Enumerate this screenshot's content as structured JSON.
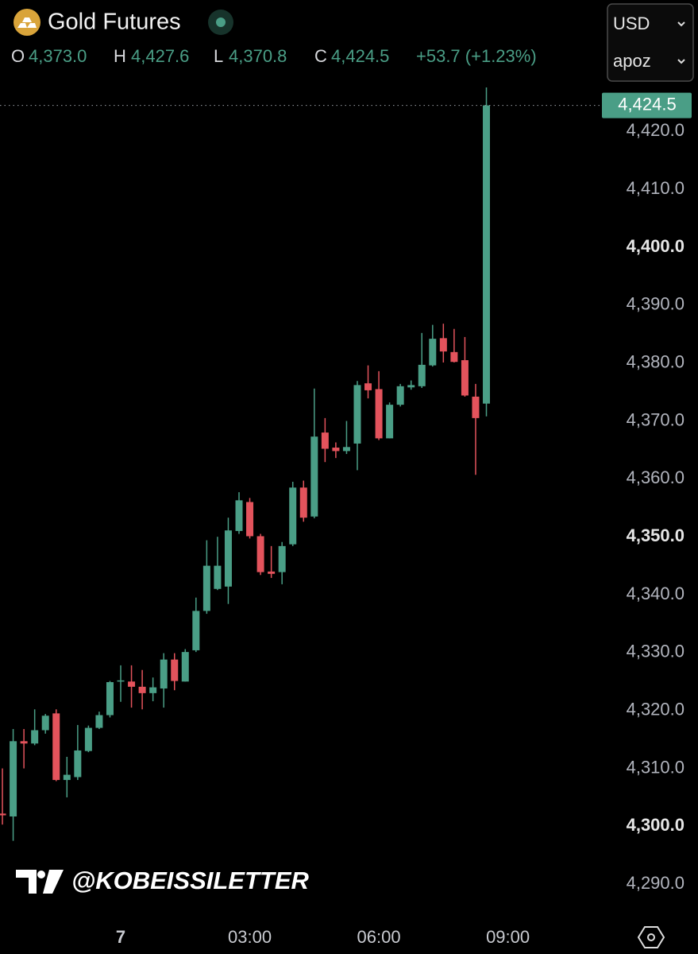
{
  "header": {
    "title": "Gold Futures",
    "ohlc": [
      {
        "key": "O",
        "value": "4,373.0"
      },
      {
        "key": "H",
        "value": "4,427.6"
      },
      {
        "key": "L",
        "value": "4,370.8"
      },
      {
        "key": "C",
        "value": "4,424.5"
      }
    ],
    "change": "+53.7 (+1.23%)"
  },
  "controls": {
    "currency": "USD",
    "unit": "apoz"
  },
  "watermark": "@KOBEISSILETTER",
  "chart_data": {
    "type": "candlestick",
    "x": [
      -2.75,
      -2.5,
      -2.25,
      -2,
      -1.75,
      -1.5,
      -1.25,
      -1,
      -0.75,
      -0.5,
      -0.25,
      0,
      0.25,
      0.5,
      0.75,
      1,
      1.25,
      1.5,
      1.75,
      2,
      2.25,
      2.5,
      2.75,
      3,
      3.25,
      3.5,
      3.75,
      4,
      4.25,
      4.5,
      4.75,
      5,
      5.25,
      5.5,
      5.75,
      6,
      6.25,
      6.5,
      6.75,
      7,
      7.25,
      7.5,
      7.75,
      8,
      8.25,
      8.5
    ],
    "open": [
      4302.2,
      4301.7,
      4314.7,
      4314.3,
      4316.6,
      4319.5,
      4308,
      4308.5,
      4313,
      4317,
      4319.2,
      4325,
      4325,
      4324.1,
      4323,
      4323.8,
      4328.8,
      4325,
      4330.4,
      4337.2,
      4341,
      4341.4,
      4351,
      4356,
      4350.1,
      4344,
      4343.9,
      4348.7,
      4358.5,
      4353.5,
      4368,
      4365.4,
      4364.8,
      4366.1,
      4376.5,
      4375.5,
      4367,
      4372.8,
      4375.8,
      4376,
      4379.6,
      4384.3,
      4381.9,
      4380.5,
      4374.2,
      4373
    ],
    "high": [
      4310,
      4316.8,
      4316.8,
      4320.2,
      4319.4,
      4320.2,
      4312,
      4317.5,
      4317.4,
      4319.8,
      4325.1,
      4327.8,
      4327.8,
      4327,
      4325.7,
      4329.9,
      4329.9,
      4330.6,
      4339.5,
      4349.4,
      4350,
      4353.3,
      4357.7,
      4356.7,
      4350.5,
      4348.4,
      4349.1,
      4359.5,
      4359.7,
      4375.6,
      4370.5,
      4366.3,
      4370,
      4376.9,
      4379.6,
      4378.6,
      4373.2,
      4376.4,
      4377,
      4385.2,
      4386.6,
      4386.8,
      4385.9,
      4384.5,
      4376.4,
      4427.6
    ],
    "low": [
      4300.3,
      4297.5,
      4310,
      4314,
      4316,
      4307.8,
      4305,
      4308,
      4312.8,
      4316.8,
      4318.8,
      4321.5,
      4320.5,
      4320.2,
      4321.6,
      4320.5,
      4323.5,
      4325,
      4330.1,
      4336.7,
      4340.8,
      4338.4,
      4350.5,
      4349.7,
      4343.4,
      4342.9,
      4341.8,
      4348.4,
      4352.6,
      4353.2,
      4362.9,
      4363.6,
      4364.3,
      4361.5,
      4373.9,
      4366.7,
      4367,
      4372.5,
      4375.4,
      4375.7,
      4379.4,
      4380.1,
      4380.1,
      4374.2,
      4360.7,
      4370.8
    ],
    "close": [
      4301.9,
      4314.7,
      4314.3,
      4316.6,
      4319.1,
      4308,
      4308.9,
      4313.1,
      4317,
      4319.2,
      4324.9,
      4325.2,
      4324.1,
      4323,
      4324,
      4328.8,
      4325.1,
      4330.1,
      4337.2,
      4345,
      4345,
      4351.1,
      4356.3,
      4350.1,
      4343.9,
      4343.6,
      4348.4,
      4358.5,
      4353.3,
      4367.3,
      4365.2,
      4364.8,
      4365.5,
      4376.2,
      4375.3,
      4367,
      4372.8,
      4376,
      4376.2,
      4379.7,
      4384.2,
      4382,
      4380.2,
      4374.4,
      4370.5,
      4424.5
    ],
    "up_color": "#4a9e86",
    "down_color": "#e3535c",
    "last_price_label": "4,424.5",
    "xlim": [
      -2.806,
      11.13
    ],
    "xticks": [
      {
        "value": 0,
        "label": "7"
      },
      {
        "value": 3,
        "label": "03:00"
      },
      {
        "value": 6,
        "label": "06:00"
      },
      {
        "value": 9,
        "label": "09:00"
      }
    ],
    "ylim": [
      4285.5,
      4442.7
    ],
    "yticks": [
      {
        "value": 4290,
        "label": "4,290.0"
      },
      {
        "value": 4300,
        "label": "4,300.0"
      },
      {
        "value": 4310,
        "label": "4,310.0"
      },
      {
        "value": 4320,
        "label": "4,320.0"
      },
      {
        "value": 4330,
        "label": "4,330.0"
      },
      {
        "value": 4340,
        "label": "4,340.0"
      },
      {
        "value": 4350,
        "label": "4,350.0"
      },
      {
        "value": 4360,
        "label": "4,360.0"
      },
      {
        "value": 4370,
        "label": "4,370.0"
      },
      {
        "value": 4380,
        "label": "4,380.0"
      },
      {
        "value": 4390,
        "label": "4,390.0"
      },
      {
        "value": 4400,
        "label": "4,400.0"
      },
      {
        "value": 4410,
        "label": "4,410.0"
      },
      {
        "value": 4420,
        "label": "4,420.0"
      }
    ]
  }
}
